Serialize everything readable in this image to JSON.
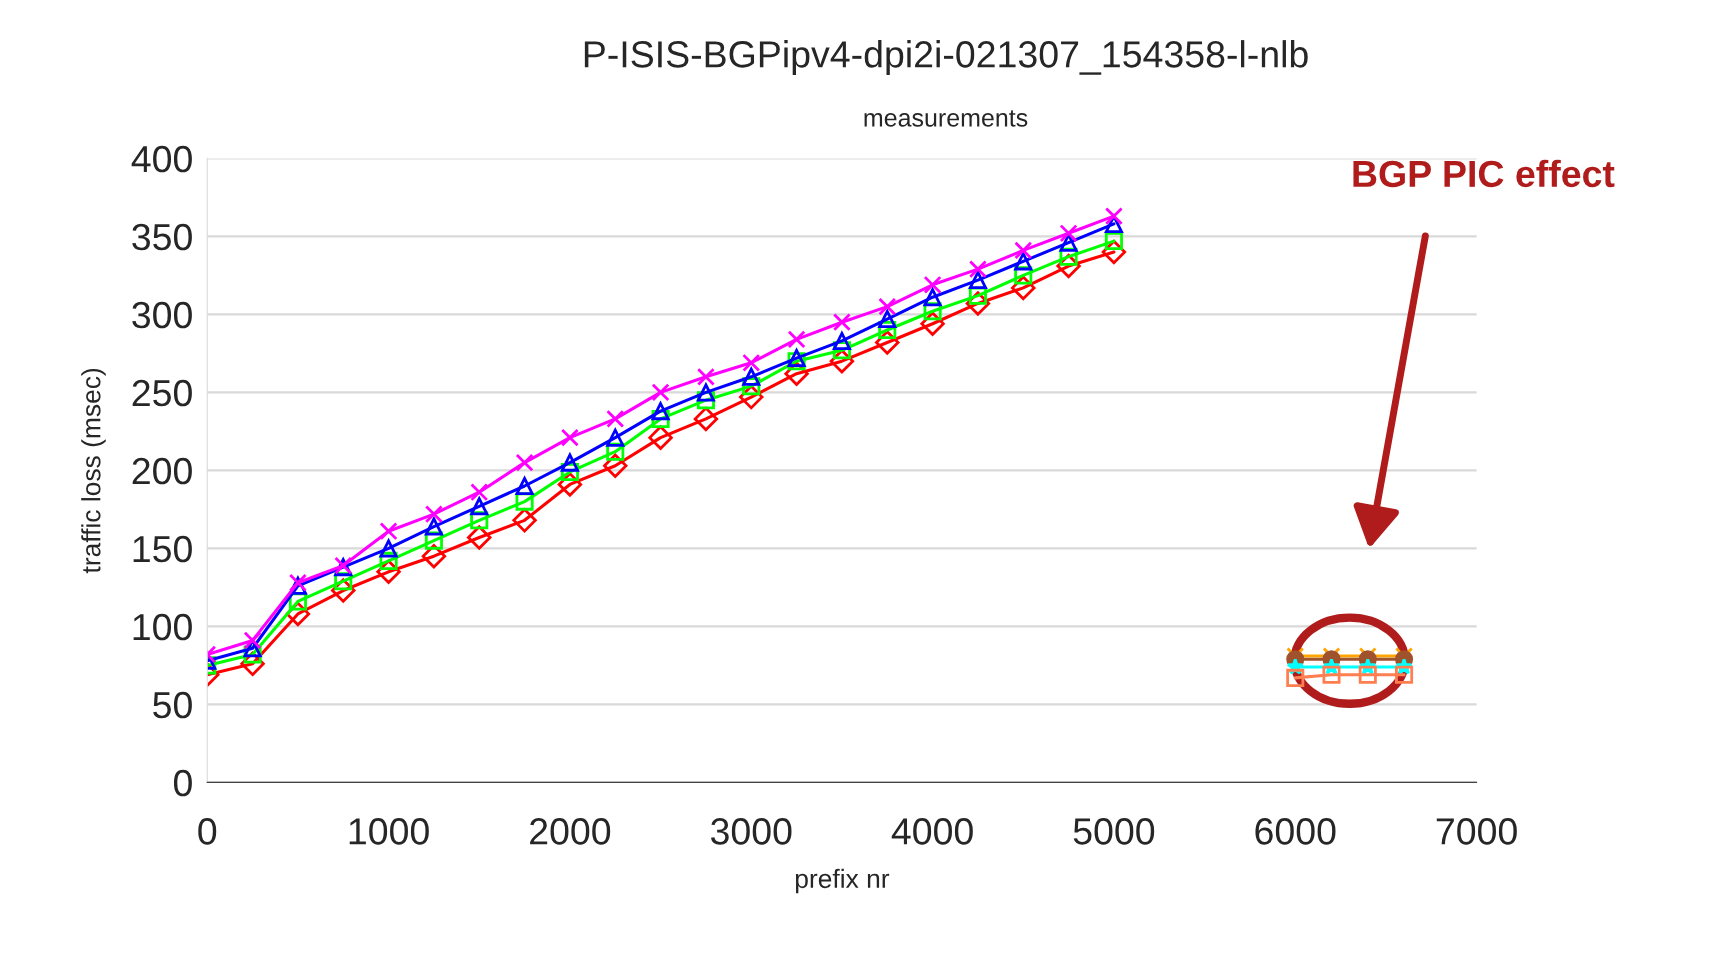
{
  "chart_data": {
    "type": "line",
    "title": "P-ISIS-BGPipv4-dpi2i-021307_154358-l-nlb",
    "subtitle": "measurements",
    "xlabel": "prefix nr",
    "ylabel": "traffic loss (msec)",
    "xlim": [
      0,
      7000
    ],
    "xticks": [
      0,
      1000,
      2000,
      3000,
      4000,
      5000,
      6000,
      7000
    ],
    "ylim": [
      0,
      400
    ],
    "yticks": [
      0,
      50,
      100,
      150,
      200,
      250,
      300,
      350,
      400
    ],
    "grid": "y",
    "legend": false,
    "series": [
      {
        "color": "#ff0000",
        "marker": "diamond",
        "x": [
          0,
          250,
          500,
          750,
          1000,
          1250,
          1500,
          1750,
          2000,
          2250,
          2500,
          2750,
          3000,
          3250,
          3500,
          3750,
          4000,
          4250,
          4500,
          4750,
          5000
        ],
        "values": [
          69,
          76,
          108,
          123,
          135,
          145,
          157,
          168,
          191,
          203,
          221,
          233,
          247,
          262,
          270,
          282,
          294,
          307,
          317,
          331,
          340
        ]
      },
      {
        "color": "#00ff00",
        "marker": "square",
        "x": [
          0,
          250,
          500,
          750,
          1000,
          1250,
          1500,
          1750,
          2000,
          2250,
          2500,
          2750,
          3000,
          3250,
          3500,
          3750,
          4000,
          4250,
          4500,
          4750,
          5000
        ],
        "values": [
          75,
          82,
          116,
          129,
          142,
          155,
          168,
          180,
          199,
          212,
          233,
          245,
          254,
          270,
          277,
          290,
          302,
          312,
          325,
          337,
          347
        ]
      },
      {
        "color": "#0000ff",
        "marker": "triangle",
        "x": [
          0,
          250,
          500,
          750,
          1000,
          1250,
          1500,
          1750,
          2000,
          2250,
          2500,
          2750,
          3000,
          3250,
          3500,
          3750,
          4000,
          4250,
          4500,
          4750,
          5000
        ],
        "values": [
          78,
          86,
          126,
          138,
          150,
          164,
          177,
          190,
          205,
          221,
          238,
          250,
          260,
          272,
          283,
          297,
          311,
          322,
          334,
          346,
          358
        ]
      },
      {
        "color": "#ff00ff",
        "marker": "cross",
        "x": [
          0,
          250,
          500,
          750,
          1000,
          1250,
          1500,
          1750,
          2000,
          2250,
          2500,
          2750,
          3000,
          3250,
          3500,
          3750,
          4000,
          4250,
          4500,
          4750,
          5000
        ],
        "values": [
          82,
          91,
          128,
          139,
          161,
          172,
          186,
          205,
          221,
          233,
          250,
          260,
          269,
          284,
          295,
          305,
          319,
          329,
          341,
          352,
          363
        ]
      },
      {
        "color": "#ffa500",
        "marker": "cross",
        "x": [
          6000,
          6200,
          6400,
          6600
        ],
        "values": [
          81,
          81,
          81,
          81
        ]
      },
      {
        "color": "#a0522d",
        "marker": "circle",
        "x": [
          6000,
          6200,
          6400,
          6600
        ],
        "values": [
          79,
          79,
          79,
          79
        ]
      },
      {
        "color": "#00ffff",
        "marker": "star",
        "x": [
          6000,
          6200,
          6400,
          6600
        ],
        "values": [
          74,
          74,
          74,
          74
        ]
      },
      {
        "color": "#ff7f50",
        "marker": "square",
        "x": [
          6000,
          6200,
          6400,
          6600
        ],
        "values": [
          67,
          69,
          69,
          69
        ]
      }
    ],
    "annotations": [
      "BGP PIC effect"
    ]
  }
}
